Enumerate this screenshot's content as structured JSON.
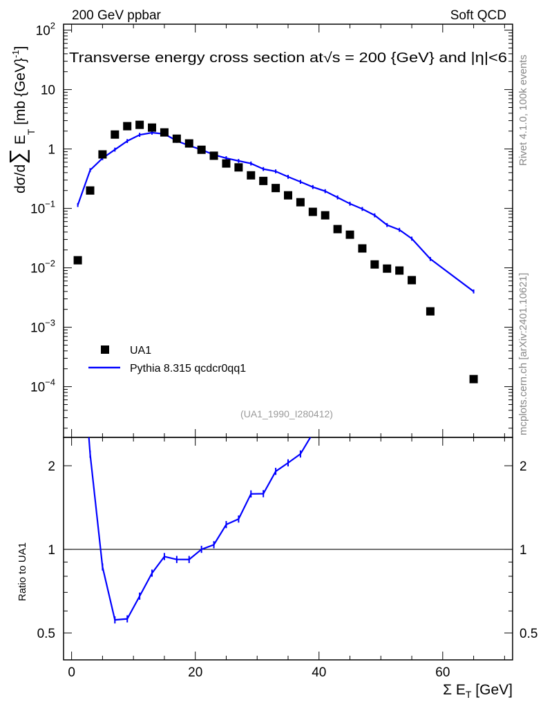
{
  "header": {
    "left": "200 GeV ppbar",
    "right": "Soft QCD"
  },
  "side_text": {
    "rivet": "Rivet 4.1.0,  100k events",
    "mcplots": "mcplots.cern.ch [arXiv:2401.10621]"
  },
  "chart_data": [
    {
      "type": "scatter",
      "title": "Transverse energy cross section at√s = 200 {GeV} and |η|<6",
      "ylabel": "dσ/d∑ E_T [mb {GeV}^-1]",
      "ylabel_parts": {
        "main": "dσ/d",
        "sum": "∑",
        "e": " E",
        "sub": "T",
        "unit": " [mb {GeV}",
        "sup": "-1",
        "close": "]"
      },
      "yscale": "log",
      "ylim": [
        1.4e-05,
        126
      ],
      "xlim": [
        -1.3,
        71.3
      ],
      "yticks": [
        0.0001,
        0.001,
        0.01,
        0.1,
        1,
        10,
        100
      ],
      "ytick_labels": [
        {
          "base": "10",
          "exp": "−4"
        },
        {
          "base": "10",
          "exp": "−3"
        },
        {
          "base": "10",
          "exp": "−2"
        },
        {
          "base": "10",
          "exp": "−1"
        },
        {
          "base": "1",
          "exp": ""
        },
        {
          "base": "10",
          "exp": ""
        },
        {
          "base": "10",
          "exp": "2"
        }
      ],
      "legend": {
        "placement": "bottom-left",
        "entries": [
          "UA1",
          "Pythia 8.315 qcdcr0qq1"
        ]
      },
      "annotation": "(UA1_1990_I280412)",
      "x": [
        1,
        3,
        5,
        7,
        9,
        11,
        13,
        15,
        17,
        19,
        21,
        23,
        25,
        27,
        29,
        31,
        33,
        35,
        37,
        39,
        41,
        43,
        45,
        47,
        49,
        51,
        53,
        55,
        58,
        65
      ],
      "series": [
        {
          "name": "UA1",
          "style": "markers",
          "color": "#000000",
          "values": [
            0.0134,
            0.2,
            0.81,
            1.75,
            2.42,
            2.55,
            2.29,
            1.9,
            1.49,
            1.24,
            0.97,
            0.77,
            0.57,
            0.49,
            0.36,
            0.29,
            0.22,
            0.166,
            0.127,
            0.0875,
            0.0765,
            0.0448,
            0.0361,
            0.0212,
            0.0114,
            0.0097,
            0.009,
            0.0062,
            0.00185,
            0.000134
          ]
        },
        {
          "name": "Pythia 8.315 qcdcr0qq1",
          "style": "line",
          "color": "#0000ff",
          "values": [
            0.114,
            0.44,
            0.7,
            0.975,
            1.36,
            1.73,
            1.88,
            1.79,
            1.37,
            1.14,
            0.97,
            0.8,
            0.7,
            0.63,
            0.57,
            0.46,
            0.42,
            0.34,
            0.28,
            0.229,
            0.195,
            0.153,
            0.12,
            0.098,
            0.0765,
            0.0525,
            0.0436,
            0.031,
            0.0141,
            0.004
          ]
        }
      ]
    },
    {
      "type": "line",
      "ylabel": "Ratio to UA1",
      "xlabel": "Σ E_T [GeV]",
      "xlabel_parts": {
        "main": "Σ E",
        "sub": "T",
        "unit": " [GeV]"
      },
      "yscale": "log",
      "ylim": [
        0.4,
        2.53
      ],
      "yticks": [
        0.5,
        1,
        2
      ],
      "ytick_labels": [
        "0.5",
        "1",
        "2"
      ],
      "xticks": [
        0,
        20,
        40,
        60
      ],
      "xtick_labels": [
        "0",
        "20",
        "40",
        "60"
      ],
      "reference_line": 1
    }
  ]
}
